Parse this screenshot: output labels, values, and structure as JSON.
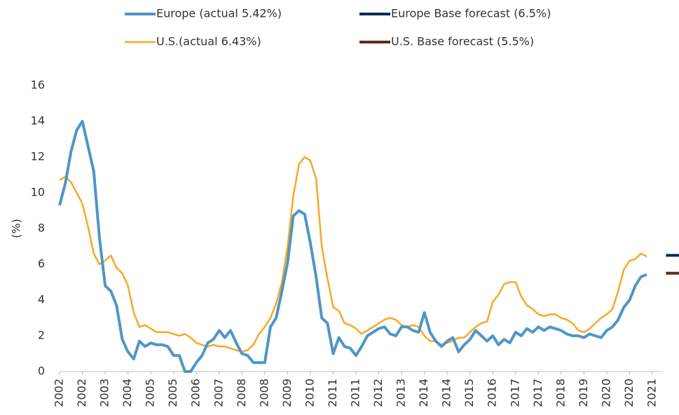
{
  "chart_data": {
    "type": "line",
    "categories": [
      "2002",
      null,
      null,
      null,
      "2002",
      null,
      null,
      null,
      "2003",
      null,
      null,
      null,
      "2004",
      null,
      null,
      null,
      "2005",
      null,
      null,
      null,
      "2005",
      null,
      null,
      null,
      "2006",
      null,
      null,
      null,
      "2007",
      null,
      null,
      null,
      "2008",
      null,
      null,
      null,
      "2008",
      null,
      null,
      null,
      "2009",
      null,
      null,
      null,
      "2010",
      null,
      null,
      null,
      "2011",
      null,
      null,
      null,
      "2011",
      null,
      null,
      null,
      "2012",
      null,
      null,
      null,
      "2013",
      null,
      null,
      null,
      "2014",
      null,
      null,
      null,
      "2014",
      null,
      null,
      null,
      "2015",
      null,
      null,
      null,
      "2016",
      null,
      null,
      null,
      "2017",
      null,
      null,
      null,
      "2017",
      null,
      null,
      null,
      "2018",
      null,
      null,
      null,
      "2019",
      null,
      null,
      null,
      "2020",
      null,
      null,
      null,
      "2020",
      null,
      null,
      null,
      "2021",
      null,
      null,
      null
    ],
    "series": [
      {
        "name": "Europe (actual 5.42%)",
        "color": "#4f96c4",
        "width": 4,
        "values": [
          9.3,
          10.5,
          12.3,
          13.5,
          14.0,
          12.6,
          11.2,
          7.5,
          4.8,
          4.5,
          3.7,
          1.8,
          1.1,
          0.7,
          1.7,
          1.4,
          1.6,
          1.5,
          1.5,
          1.4,
          0.9,
          0.9,
          0.0,
          0.0,
          0.5,
          0.9,
          1.6,
          1.8,
          2.3,
          1.9,
          2.3,
          1.6,
          1.0,
          0.9,
          0.5,
          0.5,
          0.5,
          2.5,
          3.0,
          4.5,
          6.1,
          8.7,
          9.0,
          8.8,
          7.2,
          5.3,
          3.0,
          2.7,
          1.0,
          1.9,
          1.4,
          1.3,
          0.9,
          1.4,
          2.0,
          2.2,
          2.4,
          2.5,
          2.1,
          2.0,
          2.5,
          2.5,
          2.3,
          2.2,
          3.3,
          2.2,
          1.7,
          1.4,
          1.7,
          1.9,
          1.1,
          1.5,
          1.8,
          2.3,
          2.0,
          1.7,
          2.0,
          1.5,
          1.8,
          1.6,
          2.2,
          2.0,
          2.4,
          2.2,
          2.5,
          2.3,
          2.5,
          2.4,
          2.3,
          2.1,
          2.0,
          2.0,
          1.9,
          2.1,
          2.0,
          1.9,
          2.3,
          2.5,
          2.9,
          3.6,
          4.0,
          4.8,
          5.3,
          5.42,
          null,
          null,
          null,
          null
        ]
      },
      {
        "name": "Europe Base forecast (6.5%)",
        "color": "#0e2a5a",
        "width": 4,
        "values": [
          null,
          null,
          null,
          null,
          null,
          null,
          null,
          null,
          null,
          null,
          null,
          null,
          null,
          null,
          null,
          null,
          null,
          null,
          null,
          null,
          null,
          null,
          null,
          null,
          null,
          null,
          null,
          null,
          null,
          null,
          null,
          null,
          null,
          null,
          null,
          null,
          null,
          null,
          null,
          null,
          null,
          null,
          null,
          null,
          null,
          null,
          null,
          null,
          null,
          null,
          null,
          null,
          null,
          null,
          null,
          null,
          null,
          null,
          null,
          null,
          null,
          null,
          null,
          null,
          null,
          null,
          null,
          null,
          null,
          null,
          null,
          null,
          null,
          null,
          null,
          null,
          null,
          null,
          null,
          null,
          null,
          null,
          null,
          null,
          null,
          null,
          null,
          null,
          null,
          null,
          null,
          null,
          null,
          null,
          null,
          null,
          null,
          null,
          null,
          null,
          null,
          null,
          null,
          null,
          null,
          null,
          null,
          6.5
        ]
      },
      {
        "name": "U.S.(actual 6.43%)",
        "color": "#f9a825",
        "width": 2.5,
        "values": [
          10.7,
          10.9,
          10.6,
          10.0,
          9.4,
          8.1,
          6.6,
          6.0,
          6.2,
          6.5,
          5.8,
          5.5,
          4.8,
          3.3,
          2.5,
          2.6,
          2.4,
          2.2,
          2.2,
          2.2,
          2.1,
          2.0,
          2.1,
          1.9,
          1.6,
          1.5,
          1.4,
          1.5,
          1.4,
          1.4,
          1.3,
          1.2,
          1.1,
          1.2,
          1.5,
          2.1,
          2.5,
          3.0,
          3.8,
          5.0,
          7.0,
          9.8,
          11.6,
          12.0,
          11.8,
          10.8,
          7.0,
          5.2,
          3.6,
          3.4,
          2.7,
          2.6,
          2.4,
          2.1,
          2.3,
          2.5,
          2.7,
          2.9,
          3.0,
          2.9,
          2.6,
          2.5,
          2.6,
          2.5,
          2.0,
          1.7,
          1.7,
          1.5,
          1.6,
          1.7,
          1.9,
          1.9,
          2.2,
          2.5,
          2.7,
          2.8,
          3.9,
          4.3,
          4.9,
          5.0,
          5.0,
          4.2,
          3.7,
          3.5,
          3.2,
          3.1,
          3.2,
          3.2,
          3.0,
          2.9,
          2.7,
          2.3,
          2.2,
          2.4,
          2.7,
          3.0,
          3.2,
          3.5,
          4.5,
          5.7,
          6.2,
          6.3,
          6.6,
          6.43,
          null,
          null,
          null,
          null
        ]
      },
      {
        "name": "U.S. Base forecast (5.5%)",
        "color": "#5a2e1f",
        "width": 4,
        "values": [
          null,
          null,
          null,
          null,
          null,
          null,
          null,
          null,
          null,
          null,
          null,
          null,
          null,
          null,
          null,
          null,
          null,
          null,
          null,
          null,
          null,
          null,
          null,
          null,
          null,
          null,
          null,
          null,
          null,
          null,
          null,
          null,
          null,
          null,
          null,
          null,
          null,
          null,
          null,
          null,
          null,
          null,
          null,
          null,
          null,
          null,
          null,
          null,
          null,
          null,
          null,
          null,
          null,
          null,
          null,
          null,
          null,
          null,
          null,
          null,
          null,
          null,
          null,
          null,
          null,
          null,
          null,
          null,
          null,
          null,
          null,
          null,
          null,
          null,
          null,
          null,
          null,
          null,
          null,
          null,
          null,
          null,
          null,
          null,
          null,
          null,
          null,
          null,
          null,
          null,
          null,
          null,
          null,
          null,
          null,
          null,
          null,
          null,
          null,
          null,
          null,
          null,
          null,
          null,
          null,
          null,
          null,
          5.5
        ]
      }
    ],
    "y_label": "(%)",
    "ylim": [
      0,
      16
    ],
    "yticks": [
      0,
      2,
      4,
      6,
      8,
      10,
      12,
      14,
      16
    ],
    "grid": false
  }
}
